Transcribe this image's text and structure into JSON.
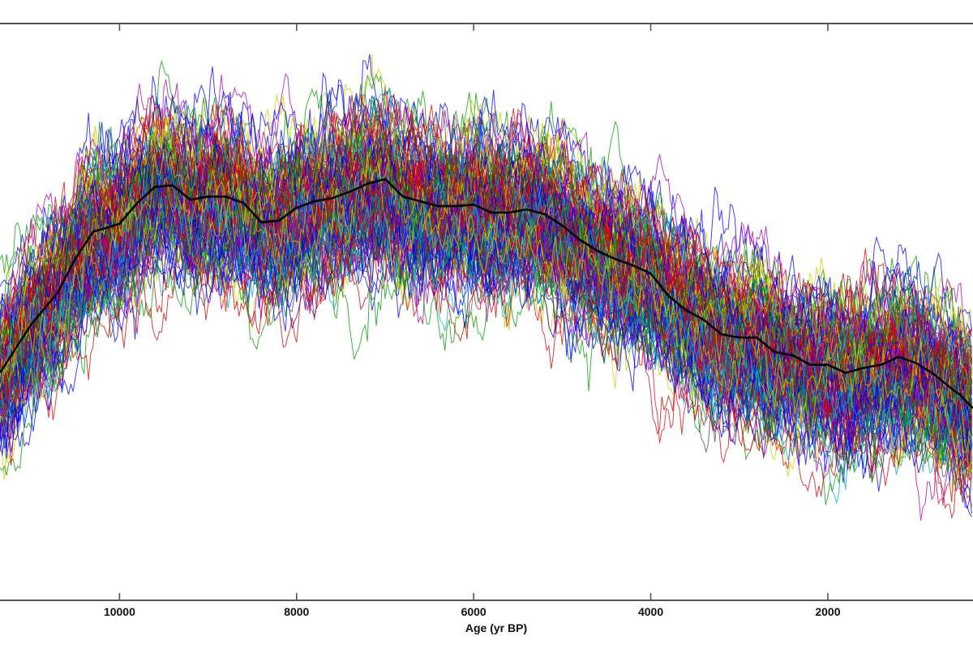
{
  "chart_data": {
    "type": "line",
    "xlabel": "Age (yr BP)",
    "ylabel": "",
    "title": "",
    "xlim": [
      11350,
      360
    ],
    "x_reversed": true,
    "ylim": [
      -1.8,
      1.8
    ],
    "x_ticks": [
      10000,
      8000,
      6000,
      4000,
      2000
    ],
    "x_tick_labels": [
      "10000",
      "8000",
      "6000",
      "4000",
      "2000"
    ],
    "grid": false,
    "legend": "none",
    "ensemble": {
      "members": 150,
      "colors": [
        "#0000cc",
        "#dd0000",
        "#009900",
        "#00aacc",
        "#aa00aa",
        "#cccc00",
        "#444444",
        "#0000ff",
        "#cc0000"
      ],
      "spread_sd": 0.29,
      "x_step": 25
    },
    "series": [
      {
        "color": "#000000",
        "x": [
          11350,
          11000,
          10700,
          10500,
          10300,
          10000,
          9800,
          9600,
          9400,
          9200,
          9000,
          8800,
          8600,
          8400,
          8200,
          8000,
          7800,
          7600,
          7400,
          7200,
          7000,
          6800,
          6600,
          6400,
          6200,
          6000,
          5800,
          5600,
          5400,
          5200,
          5000,
          4800,
          4600,
          4400,
          4200,
          4000,
          3800,
          3600,
          3400,
          3200,
          3000,
          2800,
          2600,
          2400,
          2200,
          2000,
          1800,
          1600,
          1400,
          1200,
          1000,
          800,
          600,
          500,
          400,
          360
        ],
        "values": [
          -0.38,
          -0.08,
          0.12,
          0.33,
          0.5,
          0.55,
          0.68,
          0.78,
          0.79,
          0.7,
          0.72,
          0.72,
          0.68,
          0.56,
          0.57,
          0.65,
          0.69,
          0.71,
          0.75,
          0.8,
          0.83,
          0.72,
          0.69,
          0.66,
          0.66,
          0.67,
          0.62,
          0.62,
          0.64,
          0.61,
          0.54,
          0.45,
          0.38,
          0.33,
          0.29,
          0.24,
          0.1,
          0.01,
          -0.05,
          -0.14,
          -0.16,
          -0.16,
          -0.25,
          -0.27,
          -0.33,
          -0.33,
          -0.38,
          -0.35,
          -0.33,
          -0.28,
          -0.32,
          -0.39,
          -0.48,
          -0.52,
          -0.58,
          -0.6
        ]
      }
    ]
  }
}
